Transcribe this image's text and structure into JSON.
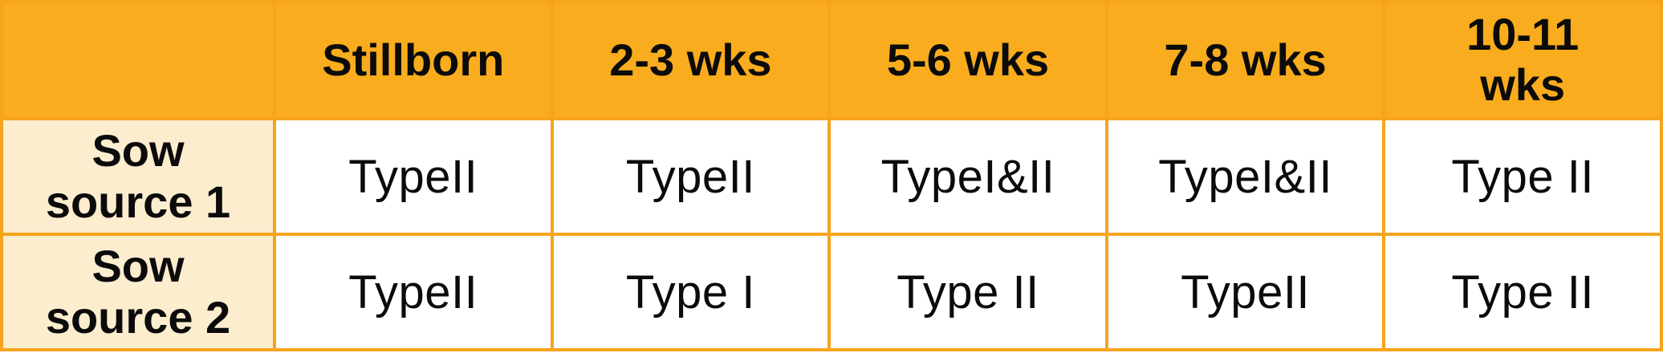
{
  "theme": {
    "--orange": "#F9AC1D",
    "--border": "#F6A41C",
    "--cream": "#FCEDCF",
    "--ink": "#0B0B0B"
  },
  "table": {
    "columns": [
      "",
      "Stillborn",
      "2-3 wks",
      "5-6 wks",
      "7-8 wks",
      "10-11 wks"
    ],
    "rows": [
      {
        "label": "Sow source 1",
        "cells": [
          "TypeII",
          "TypeII",
          "TypeI&II",
          "TypeI&II",
          "Type II"
        ]
      },
      {
        "label": "Sow source 2",
        "cells": [
          "TypeII",
          "Type I",
          "Type II",
          "TypeII",
          "Type II"
        ]
      }
    ]
  },
  "chart_data": {
    "type": "table",
    "columns": [
      "",
      "Stillborn",
      "2-3 wks",
      "5-6 wks",
      "7-8 wks",
      "10-11 wks"
    ],
    "rows": [
      [
        "Sow source 1",
        "TypeII",
        "TypeII",
        "TypeI&II",
        "TypeI&II",
        "Type II"
      ],
      [
        "Sow source 2",
        "TypeII",
        "Type I",
        "Type II",
        "TypeII",
        "Type II"
      ]
    ]
  }
}
